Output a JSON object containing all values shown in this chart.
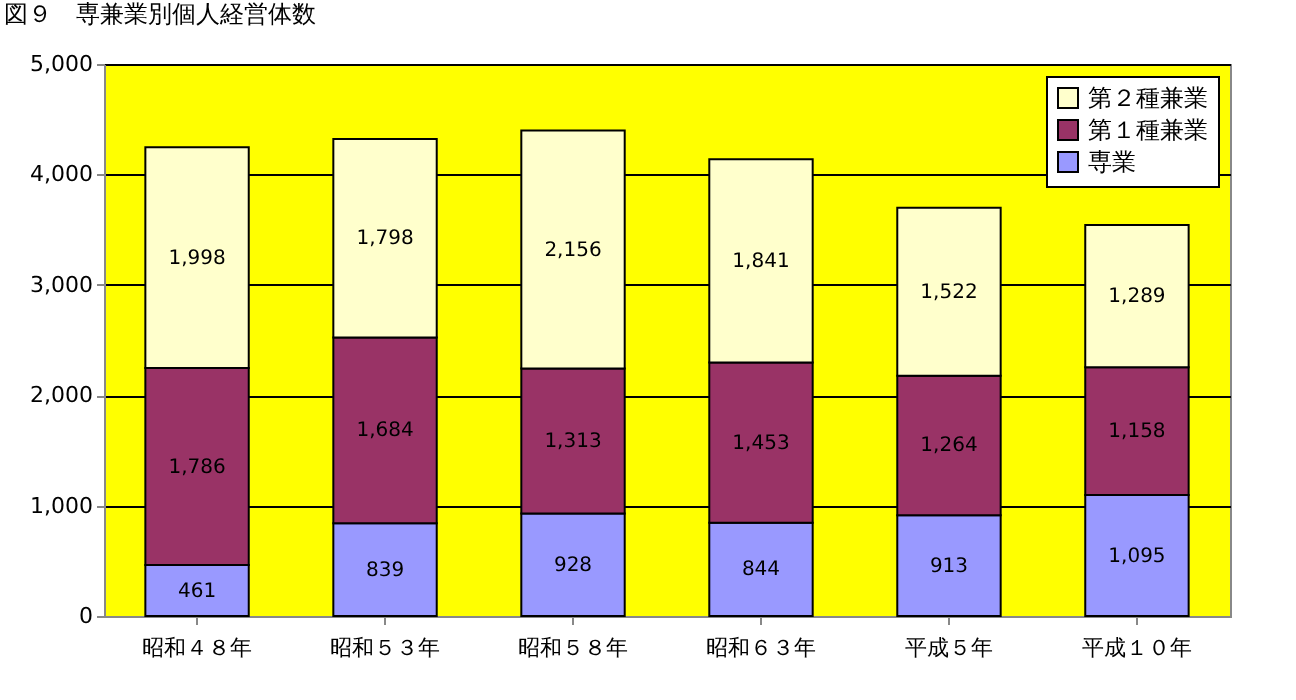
{
  "chart_data": {
    "type": "bar",
    "title": "図９　専兼業別個人経営体数",
    "stacked": true,
    "grid": "y",
    "legend": "top right",
    "categories": [
      "昭和４８年",
      "昭和５３年",
      "昭和５８年",
      "昭和６３年",
      "平成５年",
      "平成１０年"
    ],
    "ylim": [
      0,
      5000
    ],
    "yticks": [
      0,
      {
        "value": 1000,
        "label": "1,000"
      },
      {
        "value": 2000,
        "label": "2,000"
      },
      {
        "value": 3000,
        "label": "3,000"
      },
      {
        "value": 4000,
        "label": "4,000"
      },
      {
        "value": 5000,
        "label": "5,000"
      }
    ],
    "series": [
      {
        "name": "専業",
        "color": "#9999ff",
        "values": [
          461,
          839,
          928,
          844,
          913,
          1095
        ],
        "value_labels": [
          "461",
          "839",
          "928",
          "844",
          "913",
          "1,095"
        ]
      },
      {
        "name": "第１種兼業",
        "color": "#993366",
        "values": [
          1786,
          1684,
          1313,
          1453,
          1264,
          1158
        ],
        "value_labels": [
          "1,786",
          "1,684",
          "1,313",
          "1,453",
          "1,264",
          "1,158"
        ]
      },
      {
        "name": "第２種兼業",
        "color": "#ffffcc",
        "values": [
          1998,
          1798,
          2156,
          1841,
          1522,
          1289
        ],
        "value_labels": [
          "1,998",
          "1,798",
          "2,156",
          "1,841",
          "1,522",
          "1,289"
        ]
      }
    ]
  }
}
